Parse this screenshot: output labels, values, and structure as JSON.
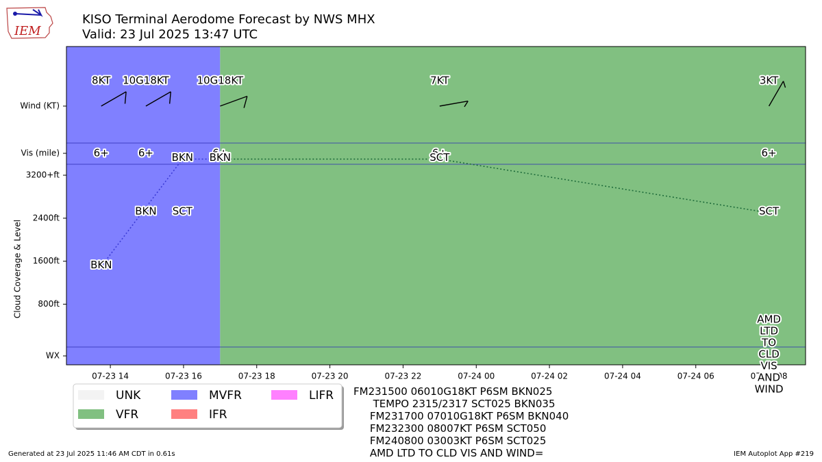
{
  "header": {
    "title": "KISO Terminal Aerodome Forecast by NWS MHX",
    "subtitle": "Valid: 23 Jul 2025 13:47 UTC",
    "logo_text": "IEM"
  },
  "chart_data": {
    "type": "timeline",
    "x_ticks": [
      {
        "t": 14,
        "label": "07-23 14"
      },
      {
        "t": 16,
        "label": "07-23 16"
      },
      {
        "t": 18,
        "label": "07-23 18"
      },
      {
        "t": 20,
        "label": "07-23 20"
      },
      {
        "t": 22,
        "label": "07-23 22"
      },
      {
        "t": 24,
        "label": "07-24 00"
      },
      {
        "t": 26,
        "label": "07-24 02"
      },
      {
        "t": 28,
        "label": "07-24 04"
      },
      {
        "t": 30,
        "label": "07-24 06"
      },
      {
        "t": 32,
        "label": "07-24 08"
      }
    ],
    "row_labels": {
      "wind": "Wind (KT)",
      "vis": "Vis (mile)",
      "wx": "WX"
    },
    "cloud_axis": {
      "label": "Cloud Coverage & Level",
      "ticks": [
        {
          "v": 800,
          "label": "800ft"
        },
        {
          "v": 1600,
          "label": "1600ft"
        },
        {
          "v": 2400,
          "label": "2400ft"
        },
        {
          "v": 3200,
          "label": "3200+ft"
        }
      ]
    },
    "categories": [
      {
        "start": 12.8,
        "end": 17.0,
        "cat": "MVFR"
      },
      {
        "start": 17.0,
        "end": 33.0,
        "cat": "VFR"
      }
    ],
    "wind": [
      {
        "t": 13.75,
        "label": "8KT",
        "dir": 60,
        "speed": 10
      },
      {
        "t": 14.97,
        "label": "10G18KT",
        "dir": 60,
        "speed": 10
      },
      {
        "t": 17.0,
        "label": "10G18KT",
        "dir": 70,
        "speed": 10
      },
      {
        "t": 23.0,
        "label": "7KT",
        "dir": 80,
        "speed": 5
      },
      {
        "t": 32.0,
        "label": "3KT",
        "dir": 30,
        "speed": 5
      }
    ],
    "visibility": [
      {
        "t": 13.75,
        "label": "6+"
      },
      {
        "t": 14.97,
        "label": "6+"
      },
      {
        "t": 17.0,
        "label": "6+"
      },
      {
        "t": 23.0,
        "label": "6+"
      },
      {
        "t": 32.0,
        "label": "6+"
      }
    ],
    "clouds": [
      {
        "t": 13.75,
        "level": 1500,
        "label": "BKN"
      },
      {
        "t": 14.97,
        "level": 2500,
        "label": "BKN"
      },
      {
        "t": 15.97,
        "level": 2500,
        "label": "SCT"
      },
      {
        "t": 15.97,
        "level": 3500,
        "label": "BKN"
      },
      {
        "t": 17.0,
        "level": 3500,
        "label": "BKN"
      },
      {
        "t": 23.0,
        "level": 3500,
        "label": "SCT"
      },
      {
        "t": 32.0,
        "level": 2500,
        "label": "SCT"
      }
    ],
    "cloud_lines": [
      {
        "color": "#3b3bd6",
        "points": [
          [
            13.75,
            1500
          ],
          [
            15.97,
            3500
          ],
          [
            17.0,
            3500
          ]
        ]
      },
      {
        "color": "#1e6b3a",
        "points": [
          [
            17.0,
            3500
          ],
          [
            23.0,
            3500
          ],
          [
            32.0,
            2500
          ]
        ]
      }
    ],
    "wx_note": {
      "t": 32.0,
      "lines": [
        "AMD",
        "LTD",
        "TO",
        "CLD",
        "VIS",
        "AND",
        "WIND"
      ]
    }
  },
  "legend": [
    {
      "label": "UNK",
      "color": "#f3f3f3"
    },
    {
      "label": "VFR",
      "color": "#81c081"
    },
    {
      "label": "MVFR",
      "color": "#8080ff"
    },
    {
      "label": "IFR",
      "color": "#ff8080"
    },
    {
      "label": "LIFR",
      "color": "#ff80ff"
    }
  ],
  "colors": {
    "MVFR": "#8080ff",
    "VFR": "#81c081",
    "IFR": "#ff8080",
    "LIFR": "#ff80ff",
    "UNK": "#f3f3f3"
  },
  "taf_text": [
    "FM231500 06010G18KT P6SM BKN025",
    "      TEMPO 2315/2317 SCT025 BKN035",
    "     FM231700 07010G18KT P6SM BKN040",
    "     FM232300 08007KT P6SM SCT050",
    "     FM240800 03003KT P6SM SCT025",
    "     AMD LTD TO CLD VIS AND WIND="
  ],
  "footer": {
    "left": "Generated at 23 Jul 2025 11:46 AM CDT in 0.61s",
    "right": "IEM Autoplot App #219"
  }
}
